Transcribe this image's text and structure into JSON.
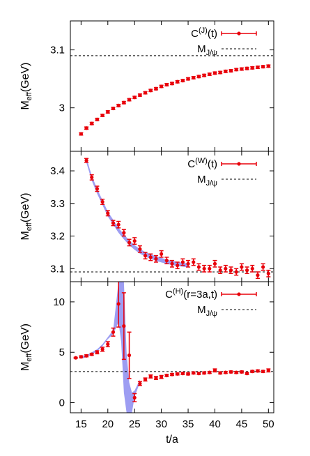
{
  "chart_data": [
    {
      "type": "scatter",
      "panel": "top",
      "xlim": [
        13,
        51
      ],
      "ylim": [
        2.925,
        3.15
      ],
      "ylabel": {
        "main": "M",
        "sub": "eff",
        "rest": "(GeV)"
      },
      "yticks": [
        3,
        3.1
      ],
      "ytick_labels": [
        "3",
        "3.1"
      ],
      "grid": false,
      "legend_position": "top-right",
      "reference_line": {
        "name": "M_J/ψ",
        "y": 3.09
      },
      "legend": [
        {
          "kind": "series",
          "main": "C",
          "sup": "(J)",
          "rest": "(t)"
        },
        {
          "kind": "reference",
          "main": "M",
          "sub": "J/ψ",
          "rest": ""
        }
      ],
      "series": [
        {
          "color": "#e8000a",
          "x": [
            15,
            16,
            17,
            18,
            19,
            20,
            21,
            22,
            23,
            24,
            25,
            26,
            27,
            28,
            29,
            30,
            31,
            32,
            33,
            34,
            35,
            36,
            37,
            38,
            39,
            40,
            41,
            42,
            43,
            44,
            45,
            46,
            47,
            48,
            49,
            50
          ],
          "y": [
            2.955,
            2.965,
            2.973,
            2.98,
            2.987,
            2.993,
            2.999,
            3.004,
            3.009,
            3.014,
            3.018,
            3.022,
            3.026,
            3.03,
            3.033,
            3.037,
            3.04,
            3.042,
            3.045,
            3.047,
            3.05,
            3.052,
            3.054,
            3.056,
            3.058,
            3.06,
            3.061,
            3.063,
            3.064,
            3.066,
            3.067,
            3.068,
            3.069,
            3.07,
            3.071,
            3.072
          ],
          "err": [
            0.002,
            0.002,
            0.002,
            0.002,
            0.002,
            0.002,
            0.002,
            0.002,
            0.002,
            0.002,
            0.002,
            0.002,
            0.002,
            0.002,
            0.002,
            0.002,
            0.002,
            0.002,
            0.002,
            0.002,
            0.002,
            0.002,
            0.002,
            0.002,
            0.002,
            0.002,
            0.002,
            0.002,
            0.002,
            0.002,
            0.002,
            0.002,
            0.002,
            0.002,
            0.002,
            0.002
          ]
        }
      ]
    },
    {
      "type": "scatter",
      "panel": "middle",
      "xlim": [
        13,
        51
      ],
      "ylim": [
        3.06,
        3.46
      ],
      "ylabel": {
        "main": "M",
        "sub": "eff",
        "rest": "(GeV)"
      },
      "yticks": [
        3.1,
        3.2,
        3.3,
        3.4
      ],
      "ytick_labels": [
        "3.1",
        "3.2",
        "3.3",
        "3.4"
      ],
      "grid": false,
      "legend_position": "top-right",
      "reference_line": {
        "name": "M_J/ψ",
        "y": 3.09
      },
      "legend": [
        {
          "kind": "series",
          "main": "C",
          "sup": "(W)",
          "rest": "(t)"
        },
        {
          "kind": "reference",
          "main": "M",
          "sub": "J/ψ",
          "rest": ""
        }
      ],
      "band": {
        "color": "#8c8cf0",
        "x": [
          16,
          17,
          18,
          19,
          20,
          21,
          22,
          23,
          24,
          25,
          26,
          27,
          28,
          29,
          30,
          31,
          32,
          33,
          34,
          35
        ],
        "lower": [
          3.425,
          3.37,
          3.33,
          3.295,
          3.26,
          3.235,
          3.21,
          3.19,
          3.172,
          3.158,
          3.146,
          3.137,
          3.13,
          3.124,
          3.119,
          3.115,
          3.111,
          3.108,
          3.106,
          3.104
        ],
        "upper": [
          3.44,
          3.385,
          3.345,
          3.31,
          3.275,
          3.25,
          3.225,
          3.205,
          3.187,
          3.172,
          3.16,
          3.151,
          3.144,
          3.138,
          3.133,
          3.128,
          3.124,
          3.121,
          3.118,
          3.116
        ]
      },
      "series": [
        {
          "color": "#e8000a",
          "x": [
            16,
            17,
            18,
            19,
            20,
            21,
            22,
            23,
            24,
            25,
            26,
            27,
            28,
            29,
            30,
            31,
            32,
            33,
            34,
            35,
            36,
            37,
            38,
            39,
            40,
            41,
            42,
            43,
            44,
            45,
            46,
            47,
            48,
            49,
            50
          ],
          "y": [
            3.432,
            3.38,
            3.345,
            3.305,
            3.27,
            3.24,
            3.235,
            3.21,
            3.18,
            3.185,
            3.16,
            3.14,
            3.135,
            3.13,
            3.145,
            3.125,
            3.115,
            3.11,
            3.12,
            3.115,
            3.12,
            3.105,
            3.1,
            3.1,
            3.115,
            3.095,
            3.1,
            3.095,
            3.09,
            3.105,
            3.095,
            3.1,
            3.08,
            3.105,
            3.085
          ],
          "err": [
            0.006,
            0.008,
            0.008,
            0.008,
            0.008,
            0.008,
            0.01,
            0.01,
            0.01,
            0.01,
            0.01,
            0.01,
            0.01,
            0.01,
            0.01,
            0.01,
            0.01,
            0.01,
            0.01,
            0.01,
            0.01,
            0.01,
            0.01,
            0.01,
            0.01,
            0.01,
            0.01,
            0.01,
            0.01,
            0.01,
            0.01,
            0.01,
            0.01,
            0.01,
            0.01
          ]
        }
      ]
    },
    {
      "type": "scatter",
      "panel": "bottom",
      "xlim": [
        13,
        51
      ],
      "ylim": [
        -1,
        12
      ],
      "xlabel": "t/a",
      "ylabel": {
        "main": "M",
        "sub": "eff",
        "rest": "(GeV)"
      },
      "xticks": [
        15,
        20,
        25,
        30,
        35,
        40,
        45,
        50
      ],
      "xtick_labels": [
        "15",
        "20",
        "25",
        "30",
        "35",
        "40",
        "45",
        "50"
      ],
      "yticks": [
        0,
        5,
        10
      ],
      "ytick_labels": [
        "0",
        "5",
        "10"
      ],
      "grid": false,
      "legend_position": "top-right",
      "reference_line": {
        "name": "M_J/ψ",
        "y": 3.09
      },
      "legend": [
        {
          "kind": "series",
          "main": "C",
          "sup": "(H)",
          "rest": "(r=3a,t)"
        },
        {
          "kind": "reference",
          "main": "M",
          "sub": "J/ψ",
          "rest": ""
        }
      ],
      "band": {
        "color": "#8c8cf0",
        "x": [
          15,
          16,
          17,
          18,
          19,
          20,
          21,
          22,
          22.5,
          23,
          23.5,
          24,
          24.5,
          25,
          26
        ],
        "lower": [
          4.4,
          4.5,
          4.8,
          5.1,
          5.6,
          6.3,
          6.8,
          8.0,
          6.0,
          1.0,
          -1.0,
          -1.0,
          -1.0,
          0.6,
          2.0
        ],
        "upper": [
          4.6,
          4.7,
          5.0,
          5.3,
          5.8,
          6.5,
          7.2,
          12.0,
          12.0,
          12.0,
          5.0,
          2.0,
          1.0,
          1.2,
          2.3
        ]
      },
      "series": [
        {
          "color": "#e8000a",
          "x": [
            14,
            15,
            16,
            17,
            18,
            19,
            20,
            21,
            22,
            23,
            24,
            25,
            26,
            27,
            28,
            29,
            30,
            31,
            32,
            33,
            34,
            35,
            36,
            37,
            38,
            39,
            40,
            41,
            42,
            43,
            44,
            45,
            46,
            47,
            48,
            49,
            50
          ],
          "y": [
            4.45,
            4.55,
            4.65,
            4.8,
            5.0,
            5.3,
            5.8,
            7.0,
            9.8,
            7.6,
            4.7,
            0.5,
            1.9,
            2.3,
            2.6,
            2.45,
            2.55,
            2.7,
            2.8,
            2.85,
            2.9,
            2.85,
            2.95,
            2.9,
            2.95,
            3.0,
            3.2,
            2.95,
            3.0,
            3.05,
            3.0,
            3.05,
            2.9,
            3.1,
            3.15,
            3.1,
            3.2
          ],
          "err": [
            0.05,
            0.1,
            0.1,
            0.1,
            0.15,
            0.2,
            0.25,
            0.4,
            2.3,
            3.3,
            2.3,
            0.4,
            0.2,
            0.15,
            0.15,
            0.15,
            0.15,
            0.1,
            0.1,
            0.1,
            0.1,
            0.1,
            0.1,
            0.1,
            0.1,
            0.1,
            0.15,
            0.1,
            0.1,
            0.1,
            0.1,
            0.1,
            0.1,
            0.1,
            0.1,
            0.1,
            0.15
          ]
        }
      ]
    }
  ]
}
